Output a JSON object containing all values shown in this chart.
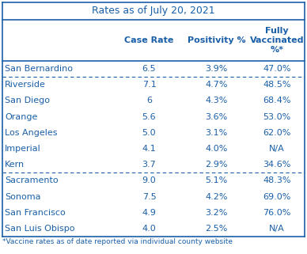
{
  "title": "Rates as of July 20, 2021",
  "col_headers": [
    "",
    "Case Rate",
    "Positivity %",
    "Fully\nVaccinated\n%*"
  ],
  "rows": [
    [
      "San Bernardino",
      "6.5",
      "3.9%",
      "47.0%"
    ],
    [
      "Riverside",
      "7.1",
      "4.7%",
      "48.5%"
    ],
    [
      "San Diego",
      "6",
      "4.3%",
      "68.4%"
    ],
    [
      "Orange",
      "5.6",
      "3.6%",
      "53.0%"
    ],
    [
      "Los Angeles",
      "5.0",
      "3.1%",
      "62.0%"
    ],
    [
      "Imperial",
      "4.1",
      "4.0%",
      "N/A"
    ],
    [
      "Kern",
      "3.7",
      "2.9%",
      "34.6%"
    ],
    [
      "Sacramento",
      "9.0",
      "5.1%",
      "48.3%"
    ],
    [
      "Sonoma",
      "7.5",
      "4.2%",
      "69.0%"
    ],
    [
      "San Francisco",
      "4.9",
      "3.2%",
      "76.0%"
    ],
    [
      "San Luis Obispo",
      "4.0",
      "2.5%",
      "N/A"
    ]
  ],
  "footnote": "*Vaccine rates as of date reported via individual county website",
  "text_color": "#1a5fa8",
  "border_color": "#1a5fa8",
  "bg_color": "#ffffff",
  "dashed_after_rows": [
    0,
    6
  ],
  "col_aligns": [
    "left",
    "center",
    "center",
    "center"
  ],
  "title_fontsize": 9,
  "header_fontsize": 8,
  "data_fontsize": 8,
  "footnote_fontsize": 6.5,
  "fig_width": 3.88,
  "fig_height": 3.21,
  "dpi": 100
}
